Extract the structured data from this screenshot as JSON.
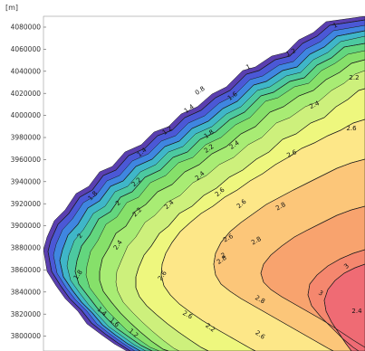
{
  "map": {
    "unit_label": "[m]",
    "y_ticks": [
      "4080000",
      "4060000",
      "4040000",
      "4020000",
      "4000000",
      "3980000",
      "3960000",
      "3940000",
      "3920000",
      "3900000",
      "3880000",
      "3860000",
      "3840000",
      "3820000",
      "3800000"
    ],
    "y_tick_values": [
      4080000,
      4060000,
      4040000,
      4020000,
      4000000,
      3980000,
      3960000,
      3940000,
      3920000,
      3900000,
      3880000,
      3860000,
      3840000,
      3820000,
      3800000
    ],
    "contour_levels": [
      0.2,
      0.4,
      0.6,
      0.8,
      1.0,
      1.2,
      1.4,
      1.6,
      1.8,
      2.0,
      2.2,
      2.4,
      2.6,
      2.8,
      3.0
    ],
    "contour_labels": [
      "1",
      "1.2",
      "1",
      "0.8",
      "1.6",
      "1.4",
      "1.2",
      "1.4",
      "1.8",
      "2.2",
      "2.4",
      "2.6",
      "2.2",
      "2.4",
      "2.2",
      "2",
      "1.8",
      "2.4",
      "2.2",
      "2.4",
      "2.6",
      "2.6",
      "2.6",
      "2.8",
      "2.6",
      "2.8",
      "2",
      "2",
      "1.8",
      "2.4",
      "2.6",
      "2.8",
      "2.8",
      "3",
      "3",
      "2.4",
      "2.6",
      "2.2",
      "1.4",
      "1.2",
      "1.6",
      "2.6"
    ],
    "colors": {
      "c0": "#5a3fb0",
      "c1": "#4b58d6",
      "c2": "#3f86e0",
      "c3": "#3fb6c8",
      "c4": "#4cc9a0",
      "c5": "#63d67e",
      "c6": "#86e06a",
      "c7": "#a8ec74",
      "c8": "#cdf07c",
      "c9": "#eef77e",
      "c10": "#fde788",
      "c11": "#fcc679",
      "c12": "#f8a36e",
      "c13": "#f5876e",
      "c14": "#ef6b74",
      "line": "#1a1a1a",
      "axis": "#555555"
    }
  }
}
